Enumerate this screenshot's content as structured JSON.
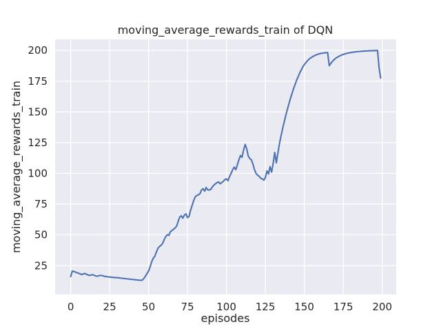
{
  "chart_data": {
    "type": "line",
    "title": "moving_average_rewards_train of DQN",
    "xlabel": "episodes",
    "ylabel": "moving_average_rewards_train",
    "x_ticks": [
      0,
      25,
      50,
      75,
      100,
      125,
      150,
      175,
      200
    ],
    "y_ticks": [
      25,
      50,
      75,
      100,
      125,
      150,
      175,
      200
    ],
    "xlim": [
      -10,
      209
    ],
    "ylim": [
      1.5,
      209
    ],
    "grid": true,
    "legend_position": "none",
    "style": {
      "axes_background": "#eaeaf2",
      "figure_background": "#ffffff",
      "grid_color": "#ffffff",
      "line_color": "#4c72b0",
      "text_color": "#262626"
    },
    "series": [
      {
        "name": "moving_average_rewards_train",
        "x_start": 0,
        "x_step": 1,
        "values": [
          16,
          20.5,
          20.2,
          19.7,
          19.2,
          18.8,
          18.3,
          17.7,
          18.1,
          18.6,
          18,
          17.4,
          16.9,
          17.3,
          17.6,
          17.1,
          16.6,
          16.3,
          16.7,
          17,
          16.9,
          16.5,
          16.2,
          16,
          15.8,
          15.7,
          15.6,
          15.4,
          15.3,
          15.2,
          15.1,
          15,
          14.8,
          14.7,
          14.5,
          14.4,
          14.2,
          14.1,
          13.9,
          13.8,
          13.7,
          13.5,
          13.4,
          13.3,
          13.1,
          13,
          13.2,
          14.5,
          16.5,
          18.5,
          20.5,
          24,
          28,
          31,
          32.5,
          36,
          39,
          40.5,
          41.5,
          43,
          46,
          48.5,
          50,
          49.5,
          52.5,
          53.5,
          54.5,
          55.5,
          57,
          61,
          64.5,
          65.5,
          63.5,
          66,
          67,
          64,
          65,
          70,
          74,
          78,
          81,
          82,
          82.5,
          83.5,
          86.5,
          87.5,
          85.5,
          88.5,
          86.5,
          86.5,
          87,
          89,
          90.5,
          91.5,
          92.5,
          93,
          91.5,
          92.5,
          93.5,
          95,
          95.5,
          94,
          97.5,
          100,
          103,
          105,
          103,
          107,
          111,
          114.5,
          113,
          119,
          123.5,
          120,
          114,
          112,
          111,
          107.5,
          103,
          100,
          98.5,
          97.5,
          96,
          95.5,
          94.5,
          96.5,
          102,
          99.5,
          105.5,
          101,
          108,
          117,
          108.5,
          116,
          124,
          130,
          136,
          141.5,
          146.5,
          151.5,
          156,
          160.5,
          164.5,
          168.5,
          172,
          175.5,
          178.5,
          181.5,
          184,
          186.5,
          188.5,
          190,
          191.5,
          192.8,
          193.8,
          194.6,
          195.4,
          196,
          196.5,
          197,
          197.3,
          197.6,
          197.8,
          198,
          198.1,
          198.2,
          187.5,
          189.5,
          191,
          192.3,
          193.4,
          194.3,
          195,
          195.7,
          196.2,
          196.7,
          197.1,
          197.5,
          197.8,
          198,
          198.3,
          198.5,
          198.7,
          198.8,
          199,
          199.1,
          199.2,
          199.3,
          199.4,
          199.5,
          199.5,
          199.6,
          199.7,
          199.7,
          199.8,
          199.8,
          199.9,
          199.9,
          186,
          177.5
        ]
      }
    ]
  }
}
